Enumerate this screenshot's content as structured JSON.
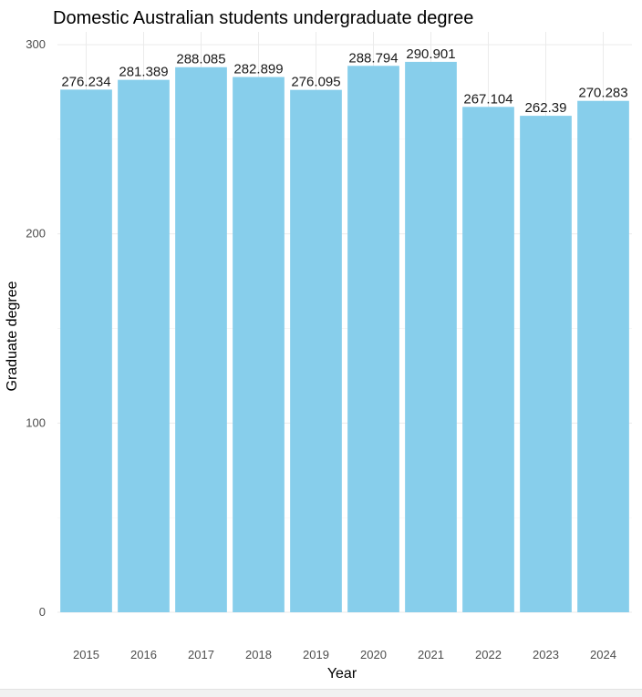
{
  "chart_data": {
    "type": "bar",
    "title": "Domestic Australian students undergraduate degree",
    "xlabel": "Year",
    "ylabel": "Graduate degree",
    "categories": [
      "2015",
      "2016",
      "2017",
      "2018",
      "2019",
      "2020",
      "2021",
      "2022",
      "2023",
      "2024"
    ],
    "values": [
      276.234,
      281.389,
      288.085,
      282.899,
      276.095,
      288.794,
      290.901,
      267.104,
      262.39,
      270.283
    ],
    "data_labels": [
      "276.234",
      "281.389",
      "288.085",
      "282.899",
      "276.095",
      "288.794",
      "290.901",
      "267.104",
      "262.39",
      "270.283"
    ],
    "yticks": [
      0,
      100,
      200,
      300
    ],
    "ylim": [
      0,
      300
    ],
    "grid": true,
    "legend": "none",
    "bar_color": "#87CEEB"
  }
}
